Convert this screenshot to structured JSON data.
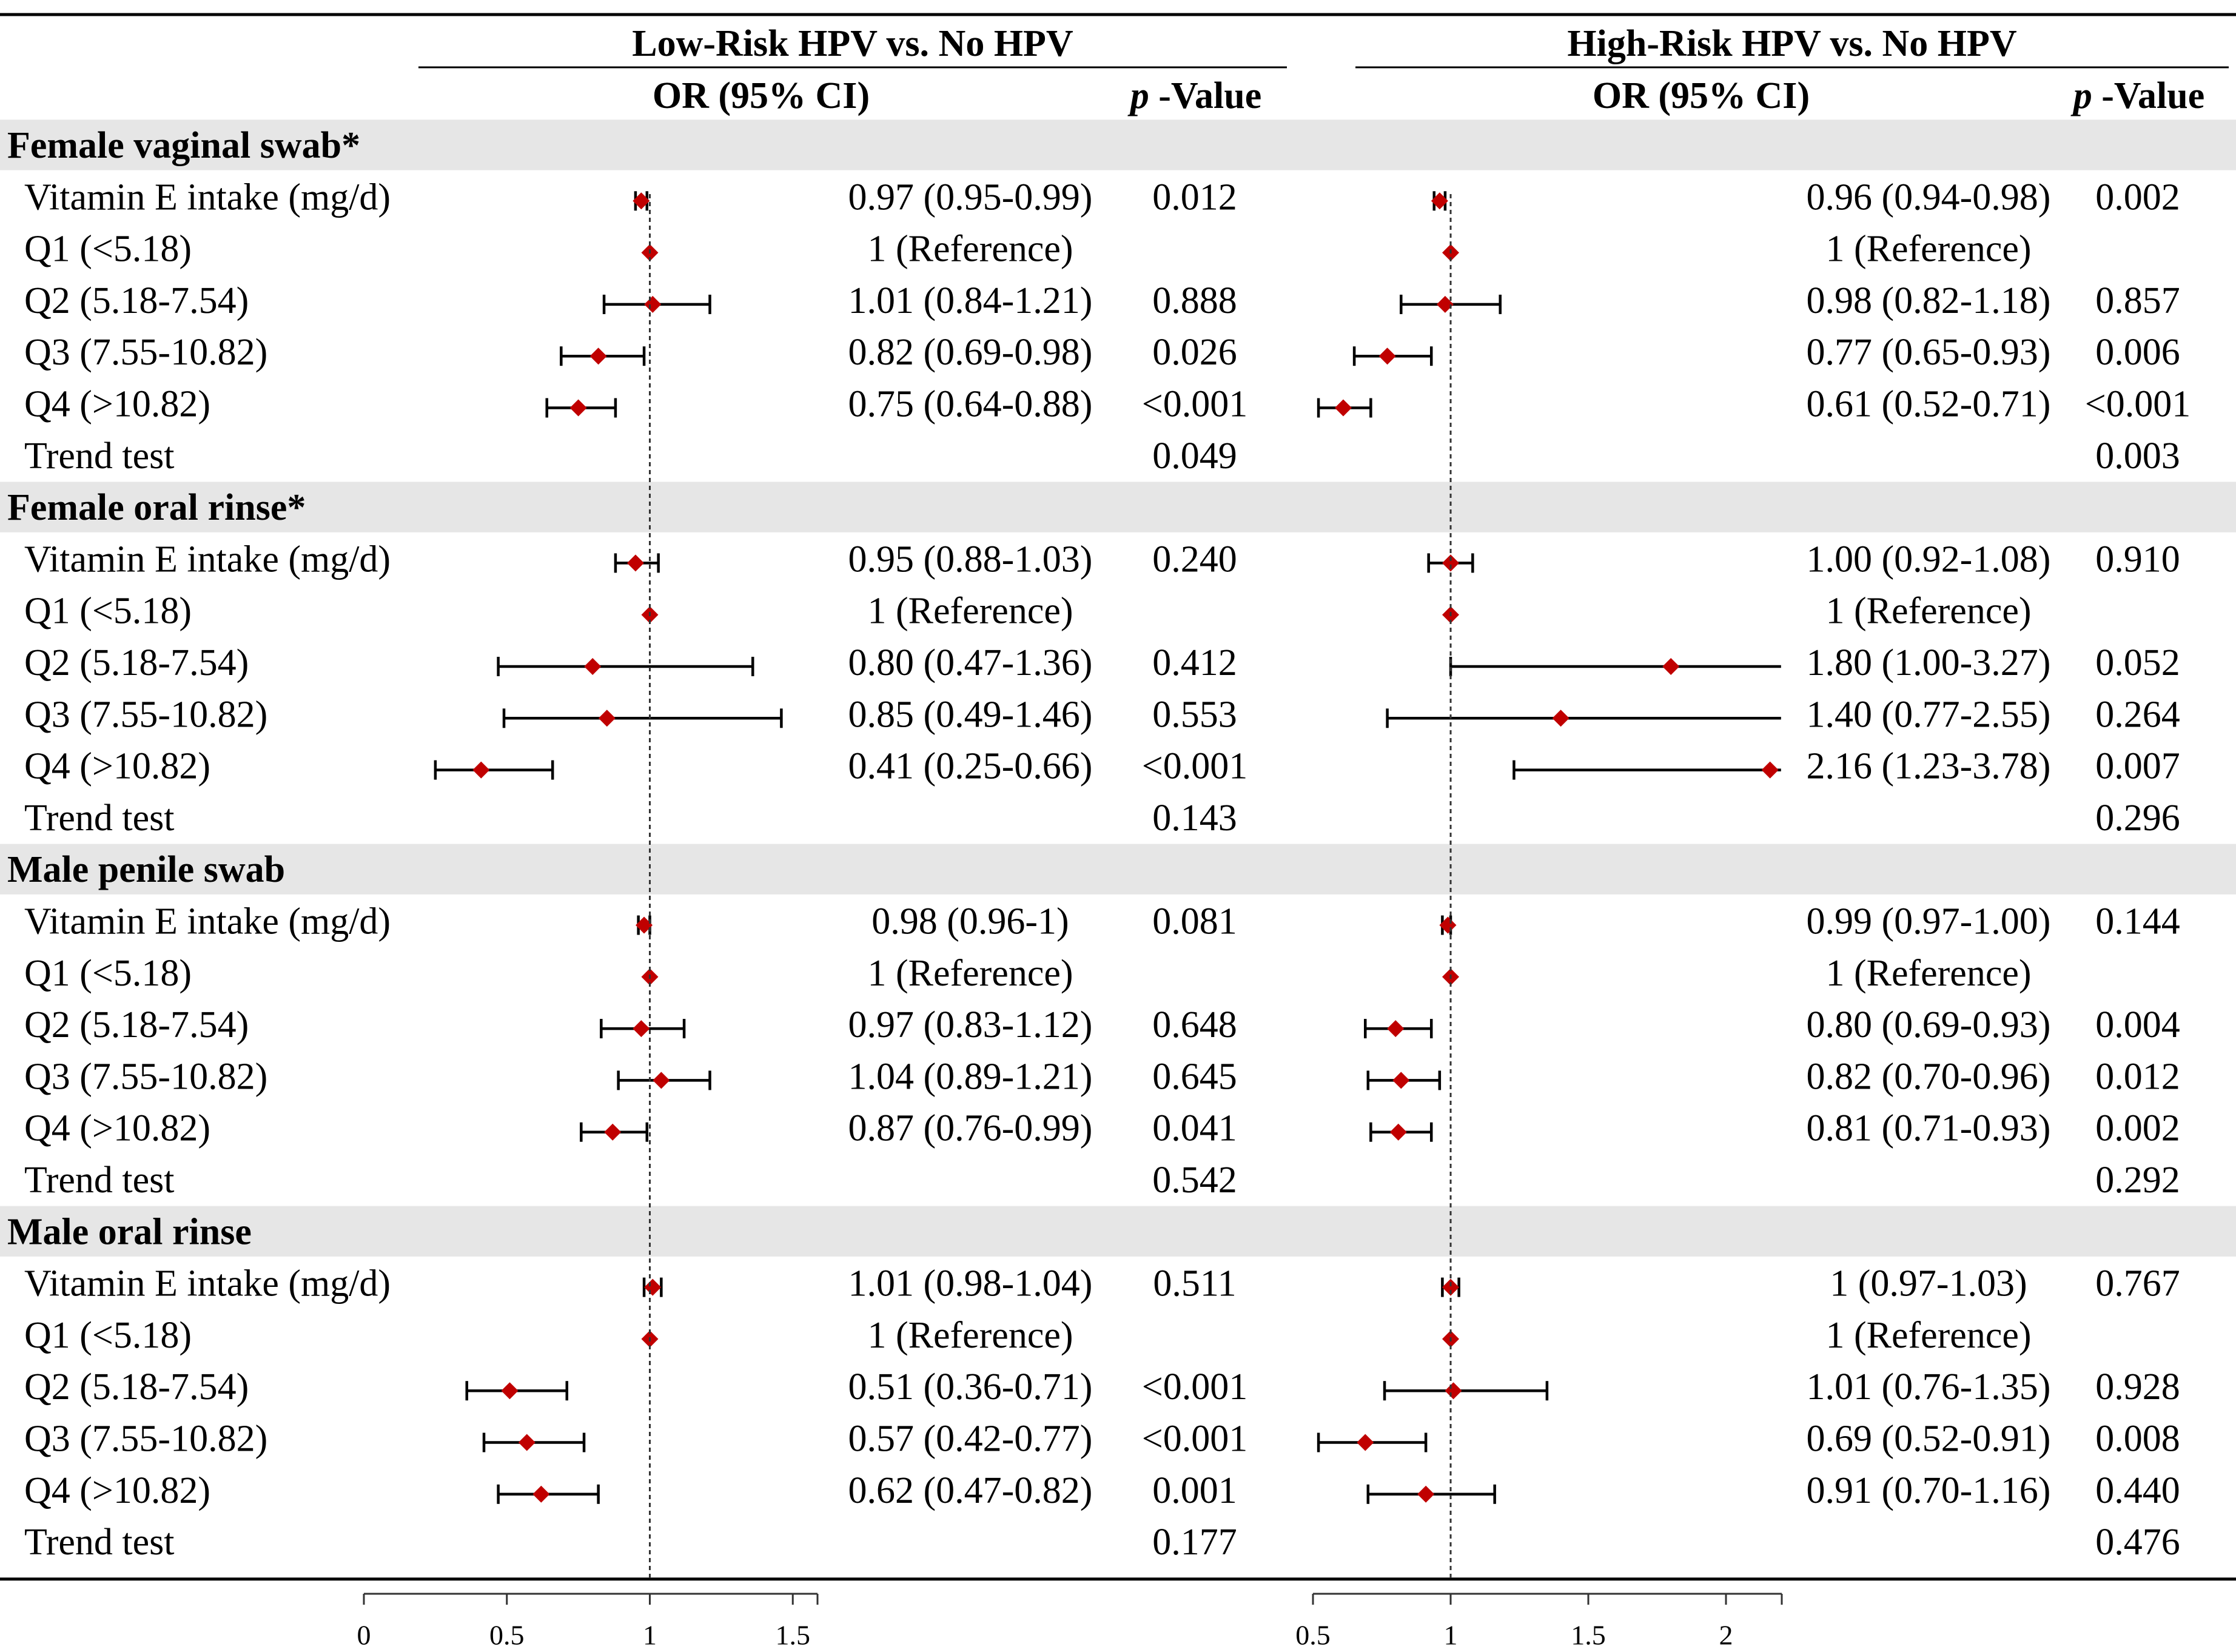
{
  "chart_data": {
    "type": "forest",
    "panels": [
      {
        "key": "low",
        "title": "Low-Risk HPV vs. No HPV",
        "or_header": "OR (95% CI)",
        "p_header_italic": "p",
        "p_header_rest": " -Value",
        "axis_ticks": [
          0,
          0.5,
          1,
          1.5
        ],
        "axis_tick_labels": [
          "0",
          "0.5",
          "1",
          "1.5"
        ],
        "axis_range": [
          0,
          1.6
        ],
        "reference_line": 1
      },
      {
        "key": "high",
        "title": "High-Risk HPV vs. No HPV",
        "or_header": "OR (95% CI)",
        "p_header_italic": "p",
        "p_header_rest": " -Value",
        "axis_ticks": [
          0.5,
          1,
          1.5,
          2
        ],
        "axis_tick_labels": [
          "0.5",
          "1",
          "1.5",
          "2"
        ],
        "axis_range": [
          0.5,
          2.2
        ],
        "reference_line": 1
      }
    ],
    "sections": [
      {
        "title": "Female vaginal swab*",
        "rows": [
          {
            "label": "Vitamin E intake (mg/d)",
            "low": {
              "or": 0.97,
              "lo": 0.95,
              "hi": 0.99,
              "text": "0.97 (0.95-0.99)",
              "p": "0.012"
            },
            "high": {
              "or": 0.96,
              "lo": 0.94,
              "hi": 0.98,
              "text": "0.96 (0.94-0.98)",
              "p": "0.002"
            }
          },
          {
            "label": "Q1 (<5.18)",
            "low": {
              "or": 1,
              "lo": 1,
              "hi": 1,
              "text": "1 (Reference)",
              "p": ""
            },
            "high": {
              "or": 1,
              "lo": 1,
              "hi": 1,
              "text": "1 (Reference)",
              "p": ""
            }
          },
          {
            "label": "Q2 (5.18-7.54)",
            "low": {
              "or": 1.01,
              "lo": 0.84,
              "hi": 1.21,
              "text": "1.01 (0.84-1.21)",
              "p": "0.888"
            },
            "high": {
              "or": 0.98,
              "lo": 0.82,
              "hi": 1.18,
              "text": "0.98 (0.82-1.18)",
              "p": "0.857"
            }
          },
          {
            "label": "Q3 (7.55-10.82)",
            "low": {
              "or": 0.82,
              "lo": 0.69,
              "hi": 0.98,
              "text": "0.82 (0.69-0.98)",
              "p": "0.026"
            },
            "high": {
              "or": 0.77,
              "lo": 0.65,
              "hi": 0.93,
              "text": "0.77 (0.65-0.93)",
              "p": "0.006"
            }
          },
          {
            "label": "Q4 (>10.82)",
            "low": {
              "or": 0.75,
              "lo": 0.64,
              "hi": 0.88,
              "text": "0.75 (0.64-0.88)",
              "p": "<0.001"
            },
            "high": {
              "or": 0.61,
              "lo": 0.52,
              "hi": 0.71,
              "text": "0.61 (0.52-0.71)",
              "p": "<0.001"
            }
          },
          {
            "label": "Trend test",
            "low": {
              "text": "",
              "p": "0.049"
            },
            "high": {
              "text": "",
              "p": "0.003"
            }
          }
        ]
      },
      {
        "title": "Female oral rinse*",
        "rows": [
          {
            "label": "Vitamin E intake (mg/d)",
            "low": {
              "or": 0.95,
              "lo": 0.88,
              "hi": 1.03,
              "text": "0.95 (0.88-1.03)",
              "p": "0.240"
            },
            "high": {
              "or": 1.0,
              "lo": 0.92,
              "hi": 1.08,
              "text": "1.00 (0.92-1.08)",
              "p": "0.910"
            }
          },
          {
            "label": "Q1 (<5.18)",
            "low": {
              "or": 1,
              "lo": 1,
              "hi": 1,
              "text": "1 (Reference)",
              "p": ""
            },
            "high": {
              "or": 1,
              "lo": 1,
              "hi": 1,
              "text": "1 (Reference)",
              "p": ""
            }
          },
          {
            "label": "Q2 (5.18-7.54)",
            "low": {
              "or": 0.8,
              "lo": 0.47,
              "hi": 1.36,
              "text": "0.80 (0.47-1.36)",
              "p": "0.412"
            },
            "high": {
              "or": 1.8,
              "lo": 1.0,
              "hi": 3.27,
              "text": "1.80 (1.00-3.27)",
              "p": "0.052"
            }
          },
          {
            "label": "Q3 (7.55-10.82)",
            "low": {
              "or": 0.85,
              "lo": 0.49,
              "hi": 1.46,
              "text": "0.85 (0.49-1.46)",
              "p": "0.553"
            },
            "high": {
              "or": 1.4,
              "lo": 0.77,
              "hi": 2.55,
              "text": "1.40 (0.77-2.55)",
              "p": "0.264"
            }
          },
          {
            "label": "Q4 (>10.82)",
            "low": {
              "or": 0.41,
              "lo": 0.25,
              "hi": 0.66,
              "text": "0.41 (0.25-0.66)",
              "p": "<0.001"
            },
            "high": {
              "or": 2.16,
              "lo": 1.23,
              "hi": 3.78,
              "text": "2.16 (1.23-3.78)",
              "p": "0.007"
            }
          },
          {
            "label": "Trend test",
            "low": {
              "text": "",
              "p": "0.143"
            },
            "high": {
              "text": "",
              "p": "0.296"
            }
          }
        ]
      },
      {
        "title": "Male penile swab",
        "rows": [
          {
            "label": "Vitamin E intake (mg/d)",
            "low": {
              "or": 0.98,
              "lo": 0.96,
              "hi": 1.0,
              "text": "0.98 (0.96-1)",
              "p": "0.081"
            },
            "high": {
              "or": 0.99,
              "lo": 0.97,
              "hi": 1.0,
              "text": "0.99 (0.97-1.00)",
              "p": "0.144"
            }
          },
          {
            "label": "Q1 (<5.18)",
            "low": {
              "or": 1,
              "lo": 1,
              "hi": 1,
              "text": "1 (Reference)",
              "p": ""
            },
            "high": {
              "or": 1,
              "lo": 1,
              "hi": 1,
              "text": "1 (Reference)",
              "p": ""
            }
          },
          {
            "label": "Q2 (5.18-7.54)",
            "low": {
              "or": 0.97,
              "lo": 0.83,
              "hi": 1.12,
              "text": "0.97 (0.83-1.12)",
              "p": "0.648"
            },
            "high": {
              "or": 0.8,
              "lo": 0.69,
              "hi": 0.93,
              "text": "0.80 (0.69-0.93)",
              "p": "0.004"
            }
          },
          {
            "label": "Q3 (7.55-10.82)",
            "low": {
              "or": 1.04,
              "lo": 0.89,
              "hi": 1.21,
              "text": "1.04 (0.89-1.21)",
              "p": "0.645"
            },
            "high": {
              "or": 0.82,
              "lo": 0.7,
              "hi": 0.96,
              "text": "0.82 (0.70-0.96)",
              "p": "0.012"
            }
          },
          {
            "label": "Q4 (>10.82)",
            "low": {
              "or": 0.87,
              "lo": 0.76,
              "hi": 0.99,
              "text": "0.87 (0.76-0.99)",
              "p": "0.041"
            },
            "high": {
              "or": 0.81,
              "lo": 0.71,
              "hi": 0.93,
              "text": "0.81 (0.71-0.93)",
              "p": "0.002"
            }
          },
          {
            "label": "Trend test",
            "low": {
              "text": "",
              "p": "0.542"
            },
            "high": {
              "text": "",
              "p": "0.292"
            }
          }
        ]
      },
      {
        "title": "Male oral rinse",
        "rows": [
          {
            "label": "Vitamin E intake (mg/d)",
            "low": {
              "or": 1.01,
              "lo": 0.98,
              "hi": 1.04,
              "text": "1.01 (0.98-1.04)",
              "p": "0.511"
            },
            "high": {
              "or": 1,
              "lo": 0.97,
              "hi": 1.03,
              "text": "1 (0.97-1.03)",
              "p": "0.767"
            }
          },
          {
            "label": "Q1 (<5.18)",
            "low": {
              "or": 1,
              "lo": 1,
              "hi": 1,
              "text": "1 (Reference)",
              "p": ""
            },
            "high": {
              "or": 1,
              "lo": 1,
              "hi": 1,
              "text": "1 (Reference)",
              "p": ""
            }
          },
          {
            "label": "Q2 (5.18-7.54)",
            "low": {
              "or": 0.51,
              "lo": 0.36,
              "hi": 0.71,
              "text": "0.51 (0.36-0.71)",
              "p": "<0.001"
            },
            "high": {
              "or": 1.01,
              "lo": 0.76,
              "hi": 1.35,
              "text": "1.01 (0.76-1.35)",
              "p": "0.928"
            }
          },
          {
            "label": "Q3 (7.55-10.82)",
            "low": {
              "or": 0.57,
              "lo": 0.42,
              "hi": 0.77,
              "text": "0.57 (0.42-0.77)",
              "p": "<0.001"
            },
            "high": {
              "or": 0.69,
              "lo": 0.52,
              "hi": 0.91,
              "text": "0.69 (0.52-0.91)",
              "p": "0.008"
            }
          },
          {
            "label": "Q4 (>10.82)",
            "low": {
              "or": 0.62,
              "lo": 0.47,
              "hi": 0.82,
              "text": "0.62 (0.47-0.82)",
              "p": "0.001"
            },
            "high": {
              "or": 0.91,
              "lo": 0.7,
              "hi": 1.16,
              "text": "0.91 (0.70-1.16)",
              "p": "0.440"
            }
          },
          {
            "label": "Trend test",
            "low": {
              "text": "",
              "p": "0.177"
            },
            "high": {
              "text": "",
              "p": "0.476"
            }
          }
        ]
      }
    ]
  },
  "colors": {
    "marker": "#c00000",
    "section_band": "#e6e6e6",
    "line": "#000000",
    "axis": "#333333"
  }
}
